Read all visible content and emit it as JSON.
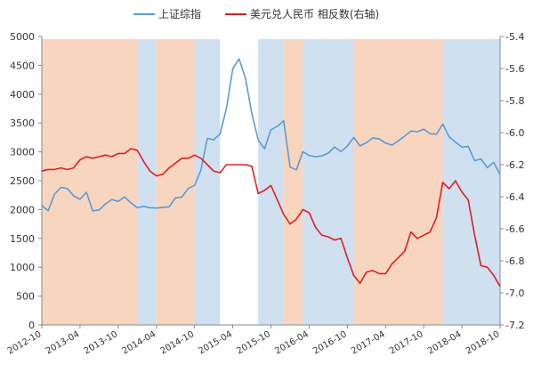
{
  "chart_data": {
    "type": "line",
    "legend": [
      {
        "name": "上证综指",
        "color": "#5b9bd5"
      },
      {
        "name": "美元兑人民币 相反数(右轴)",
        "color": "#e02020"
      }
    ],
    "legend_position": "top",
    "x": [
      "2012-10",
      "2012-11",
      "2012-12",
      "2013-01",
      "2013-02",
      "2013-03",
      "2013-04",
      "2013-05",
      "2013-06",
      "2013-07",
      "2013-08",
      "2013-09",
      "2013-10",
      "2013-11",
      "2013-12",
      "2014-01",
      "2014-02",
      "2014-03",
      "2014-04",
      "2014-05",
      "2014-06",
      "2014-07",
      "2014-08",
      "2014-09",
      "2014-10",
      "2014-11",
      "2014-12",
      "2015-01",
      "2015-02",
      "2015-03",
      "2015-04",
      "2015-05",
      "2015-06",
      "2015-07",
      "2015-08",
      "2015-09",
      "2015-10",
      "2015-11",
      "2015-12",
      "2016-01",
      "2016-02",
      "2016-03",
      "2016-04",
      "2016-05",
      "2016-06",
      "2016-07",
      "2016-08",
      "2016-09",
      "2016-10",
      "2016-11",
      "2016-12",
      "2017-01",
      "2017-02",
      "2017-03",
      "2017-04",
      "2017-05",
      "2017-06",
      "2017-07",
      "2017-08",
      "2017-09",
      "2017-10",
      "2017-11",
      "2017-12",
      "2018-01",
      "2018-02",
      "2018-03",
      "2018-04",
      "2018-05",
      "2018-06",
      "2018-07",
      "2018-08",
      "2018-09",
      "2018-10"
    ],
    "x_tick_labels": [
      "2012-10",
      "2013-04",
      "2013-10",
      "2014-04",
      "2014-10",
      "2015-04",
      "2015-10",
      "2016-04",
      "2016-10",
      "2017-04",
      "2017-10",
      "2018-04",
      "2018-10"
    ],
    "series": [
      {
        "name": "上证综指",
        "axis": "left",
        "color": "#5b9bd5",
        "values": [
          2069,
          1980,
          2269,
          2385,
          2365,
          2237,
          2178,
          2301,
          1979,
          1994,
          2098,
          2174,
          2141,
          2220,
          2116,
          2033,
          2056,
          2033,
          2026,
          2039,
          2048,
          2201,
          2217,
          2364,
          2420,
          2683,
          3235,
          3210,
          3310,
          3748,
          4441,
          4612,
          4277,
          3664,
          3206,
          3053,
          3383,
          3445,
          3539,
          2738,
          2688,
          3004,
          2938,
          2917,
          2930,
          2979,
          3085,
          3005,
          3100,
          3250,
          3104,
          3159,
          3242,
          3223,
          3155,
          3117,
          3192,
          3273,
          3361,
          3349,
          3393,
          3317,
          3307,
          3481,
          3259,
          3169,
          3082,
          3095,
          2847,
          2876,
          2725,
          2821,
          2603
        ]
      },
      {
        "name": "美元兑人民币 相反数(右轴)",
        "axis": "right",
        "color": "#e02020",
        "values": [
          -6.24,
          -6.23,
          -6.23,
          -6.22,
          -6.23,
          -6.22,
          -6.17,
          -6.15,
          -6.16,
          -6.15,
          -6.14,
          -6.15,
          -6.13,
          -6.13,
          -6.1,
          -6.11,
          -6.18,
          -6.24,
          -6.27,
          -6.26,
          -6.22,
          -6.19,
          -6.16,
          -6.16,
          -6.14,
          -6.16,
          -6.2,
          -6.24,
          -6.25,
          -6.2,
          -6.2,
          -6.2,
          -6.2,
          -6.21,
          -6.38,
          -6.36,
          -6.33,
          -6.42,
          -6.51,
          -6.57,
          -6.54,
          -6.48,
          -6.5,
          -6.59,
          -6.64,
          -6.65,
          -6.67,
          -6.66,
          -6.78,
          -6.89,
          -6.94,
          -6.87,
          -6.86,
          -6.88,
          -6.88,
          -6.82,
          -6.78,
          -6.74,
          -6.62,
          -6.66,
          -6.64,
          -6.62,
          -6.53,
          -6.31,
          -6.35,
          -6.3,
          -6.37,
          -6.42,
          -6.64,
          -6.83,
          -6.84,
          -6.89,
          -6.96
        ]
      }
    ],
    "shaded_regions": [
      {
        "start": "2012-10",
        "end": "2014-01",
        "color": "#f8d5bf"
      },
      {
        "start": "2014-01",
        "end": "2014-04",
        "color": "#cfe0f1"
      },
      {
        "start": "2014-04",
        "end": "2014-10",
        "color": "#f8d5bf"
      },
      {
        "start": "2014-10",
        "end": "2015-02",
        "color": "#cfe0f1"
      },
      {
        "start": "2015-08",
        "end": "2015-12",
        "color": "#cfe0f1"
      },
      {
        "start": "2015-12",
        "end": "2016-03",
        "color": "#f8d5bf"
      },
      {
        "start": "2016-03",
        "end": "2016-11",
        "color": "#cfe0f1"
      },
      {
        "start": "2016-11",
        "end": "2018-01",
        "color": "#f8d5bf"
      },
      {
        "start": "2018-01",
        "end": "2018-10",
        "color": "#cfe0f1"
      }
    ],
    "y_left": {
      "min": 0,
      "max": 5000,
      "step": 500,
      "ticks": [
        "0",
        "500",
        "1000",
        "1500",
        "2000",
        "2500",
        "3000",
        "3500",
        "4000",
        "4500",
        "5000"
      ]
    },
    "y_right": {
      "min": -7.2,
      "max": -5.4,
      "step": 0.2,
      "ticks": [
        "-7.2",
        "-7.0",
        "-6.8",
        "-6.6",
        "-6.4",
        "-6.2",
        "-6.0",
        "-5.8",
        "-5.6",
        "-5.4"
      ]
    },
    "grid": false,
    "title": "",
    "xlabel": "",
    "ylabel": ""
  }
}
